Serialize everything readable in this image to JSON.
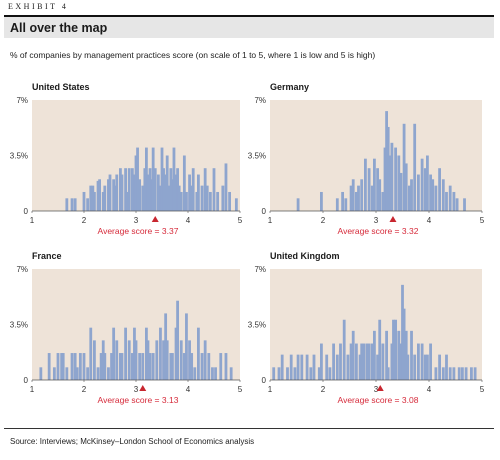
{
  "header": {
    "exhibit": "EXHIBIT 4",
    "title": "All over the map",
    "subtitle": "% of companies by management practices score (on scale of 1 to 5, where 1 is low and 5 is high)"
  },
  "source": "Source: Interviews; McKinsey–London School of Economics analysis",
  "colors": {
    "bar": "#8ea5ce",
    "background": "#eee3d8",
    "marker": "#c8262f",
    "average_text": "#d62a3a"
  },
  "chart_data": [
    {
      "type": "bar",
      "title": "United States",
      "xlim": [
        1,
        5
      ],
      "xticks": [
        "1",
        "2",
        "3",
        "4",
        "5"
      ],
      "ylim": [
        0,
        7
      ],
      "yticks": [
        "0",
        "3.5%",
        "7%"
      ],
      "average_label": "Average score = 3.37",
      "average": 3.37,
      "x": [
        1.67,
        1.77,
        1.83,
        2.0,
        2.07,
        2.13,
        2.17,
        2.2,
        2.27,
        2.3,
        2.37,
        2.4,
        2.47,
        2.5,
        2.57,
        2.6,
        2.63,
        2.7,
        2.73,
        2.8,
        2.83,
        2.87,
        2.93,
        2.97,
        3.0,
        3.03,
        3.07,
        3.13,
        3.17,
        3.2,
        3.23,
        3.27,
        3.3,
        3.33,
        3.37,
        3.43,
        3.47,
        3.5,
        3.53,
        3.57,
        3.6,
        3.63,
        3.67,
        3.7,
        3.73,
        3.77,
        3.8,
        3.83,
        3.87,
        3.93,
        3.97,
        4.03,
        4.07,
        4.1,
        4.17,
        4.2,
        4.27,
        4.33,
        4.37,
        4.43,
        4.5,
        4.57,
        4.67,
        4.73,
        4.8,
        4.93
      ],
      "values": [
        0.8,
        0.8,
        0.8,
        1.2,
        0.8,
        1.6,
        1.6,
        1.2,
        1.9,
        2.0,
        1.2,
        1.6,
        2.0,
        2.3,
        2.0,
        1.6,
        2.3,
        2.7,
        2.3,
        2.7,
        1.2,
        2.7,
        2.7,
        2.3,
        3.5,
        4.0,
        2.0,
        1.6,
        2.7,
        4.0,
        2.3,
        2.7,
        2.0,
        4.0,
        2.7,
        2.3,
        1.6,
        4.0,
        2.7,
        2.3,
        3.5,
        1.6,
        2.7,
        2.0,
        4.0,
        2.3,
        2.7,
        1.6,
        1.2,
        3.5,
        1.2,
        2.3,
        1.6,
        2.7,
        1.2,
        2.3,
        1.6,
        2.7,
        1.6,
        1.2,
        2.7,
        1.2,
        1.6,
        3.0,
        1.2,
        0.8
      ]
    },
    {
      "type": "bar",
      "title": "Germany",
      "xlim": [
        1,
        5
      ],
      "xticks": [
        "1",
        "2",
        "3",
        "4",
        "5"
      ],
      "ylim": [
        0,
        7
      ],
      "yticks": [
        "0",
        "3.5%",
        "7%"
      ],
      "average_label": "Average score = 3.32",
      "average": 3.32,
      "x": [
        1.53,
        1.97,
        2.27,
        2.37,
        2.43,
        2.53,
        2.57,
        2.63,
        2.67,
        2.73,
        2.8,
        2.87,
        2.93,
        2.97,
        3.03,
        3.07,
        3.13,
        3.17,
        3.2,
        3.23,
        3.27,
        3.3,
        3.37,
        3.43,
        3.47,
        3.53,
        3.57,
        3.63,
        3.67,
        3.73,
        3.8,
        3.87,
        3.93,
        3.97,
        4.03,
        4.07,
        4.13,
        4.2,
        4.27,
        4.33,
        4.4,
        4.47,
        4.53,
        4.67
      ],
      "values": [
        0.8,
        1.2,
        0.8,
        1.2,
        0.8,
        1.6,
        2.0,
        1.2,
        1.6,
        2.0,
        3.3,
        2.7,
        1.6,
        3.3,
        2.7,
        2.0,
        1.2,
        4.0,
        6.3,
        5.3,
        3.5,
        4.3,
        4.0,
        3.5,
        2.4,
        5.5,
        3.0,
        1.6,
        2.0,
        5.5,
        2.3,
        3.3,
        2.7,
        3.5,
        2.3,
        2.0,
        1.6,
        2.7,
        2.0,
        1.2,
        1.6,
        1.2,
        0.8,
        0.8
      ]
    },
    {
      "type": "bar",
      "title": "France",
      "xlim": [
        1,
        5
      ],
      "xticks": [
        "1",
        "2",
        "3",
        "4",
        "5"
      ],
      "ylim": [
        0,
        7
      ],
      "yticks": [
        "0",
        "3.5%",
        "7%"
      ],
      "average_label": "Average score = 3.13",
      "average": 3.13,
      "x": [
        1.17,
        1.33,
        1.43,
        1.5,
        1.57,
        1.6,
        1.67,
        1.77,
        1.83,
        1.87,
        1.93,
        2.0,
        2.07,
        2.13,
        2.2,
        2.27,
        2.33,
        2.37,
        2.4,
        2.47,
        2.53,
        2.57,
        2.63,
        2.7,
        2.73,
        2.8,
        2.87,
        2.93,
        2.97,
        3.0,
        3.07,
        3.13,
        3.2,
        3.23,
        3.27,
        3.33,
        3.4,
        3.47,
        3.53,
        3.57,
        3.6,
        3.67,
        3.7,
        3.77,
        3.8,
        3.87,
        3.93,
        3.97,
        4.03,
        4.07,
        4.13,
        4.2,
        4.27,
        4.33,
        4.4,
        4.47,
        4.53,
        4.63,
        4.73,
        4.83
      ],
      "values": [
        0.8,
        1.7,
        0.8,
        1.7,
        1.7,
        1.7,
        0.8,
        1.7,
        1.7,
        0.8,
        1.7,
        1.7,
        0.8,
        3.3,
        2.5,
        0.8,
        1.7,
        2.5,
        1.7,
        0.8,
        1.7,
        3.3,
        2.5,
        1.7,
        1.7,
        3.3,
        2.5,
        1.7,
        3.3,
        2.5,
        1.7,
        1.7,
        3.3,
        2.5,
        1.7,
        1.7,
        2.5,
        3.3,
        2.5,
        4.2,
        2.5,
        1.7,
        1.7,
        3.3,
        5.0,
        2.5,
        1.7,
        4.2,
        2.5,
        1.7,
        0.8,
        3.3,
        1.7,
        2.5,
        1.7,
        0.8,
        0.8,
        1.7,
        1.7,
        0.8
      ]
    },
    {
      "type": "bar",
      "title": "United Kingdom",
      "xlim": [
        1,
        5
      ],
      "xticks": [
        "1",
        "2",
        "3",
        "4",
        "5"
      ],
      "ylim": [
        0,
        7
      ],
      "yticks": [
        "0",
        "3.5%",
        "7%"
      ],
      "average_label": "Average score = 3.08",
      "average": 3.08,
      "x": [
        1.07,
        1.17,
        1.23,
        1.33,
        1.4,
        1.47,
        1.53,
        1.6,
        1.7,
        1.77,
        1.83,
        1.93,
        1.97,
        2.07,
        2.13,
        2.2,
        2.27,
        2.33,
        2.4,
        2.47,
        2.53,
        2.57,
        2.63,
        2.7,
        2.73,
        2.77,
        2.83,
        2.87,
        2.93,
        2.97,
        3.03,
        3.07,
        3.13,
        3.2,
        3.23,
        3.3,
        3.33,
        3.37,
        3.43,
        3.47,
        3.5,
        3.53,
        3.57,
        3.6,
        3.67,
        3.73,
        3.8,
        3.87,
        3.93,
        3.97,
        4.03,
        4.13,
        4.2,
        4.27,
        4.33,
        4.4,
        4.47,
        4.57,
        4.63,
        4.7,
        4.8,
        4.87
      ],
      "values": [
        0.8,
        0.8,
        1.6,
        0.8,
        1.6,
        0.8,
        1.6,
        1.6,
        1.6,
        0.8,
        1.6,
        0.8,
        2.3,
        1.6,
        0.8,
        2.3,
        1.6,
        2.3,
        3.8,
        1.6,
        2.3,
        3.1,
        2.3,
        1.6,
        2.3,
        2.3,
        2.3,
        2.3,
        2.3,
        3.1,
        1.6,
        3.8,
        2.3,
        3.1,
        0.8,
        2.3,
        3.8,
        3.8,
        3.1,
        2.3,
        6.0,
        4.5,
        3.1,
        1.6,
        3.1,
        1.6,
        2.3,
        2.3,
        1.6,
        1.6,
        2.3,
        0.8,
        1.6,
        0.8,
        1.6,
        0.8,
        0.8,
        0.8,
        0.8,
        0.8,
        0.8,
        0.8
      ]
    }
  ]
}
